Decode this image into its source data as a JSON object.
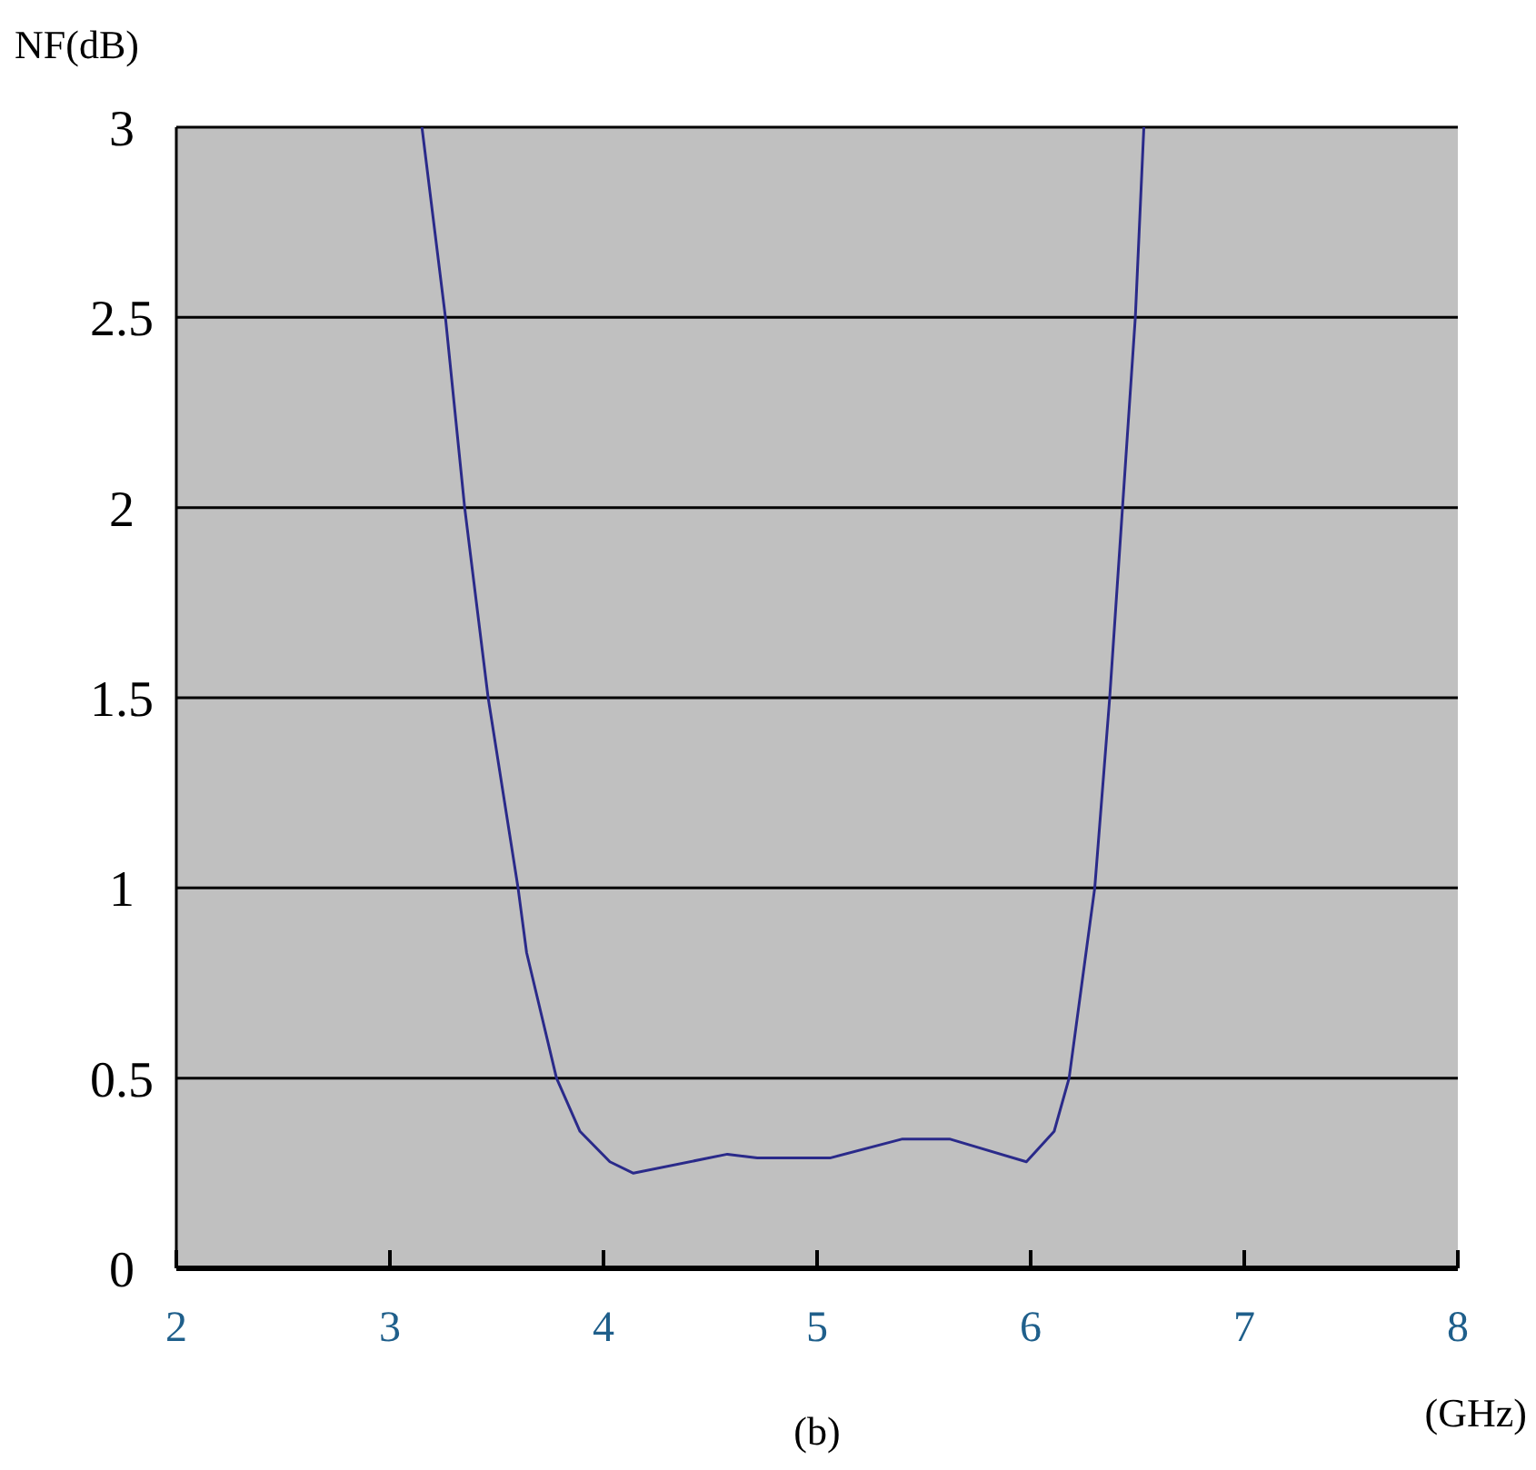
{
  "chart_data": {
    "type": "line",
    "xlabel": "(GHz)",
    "ylabel": "NF(dB)",
    "annotations": [
      "(b)"
    ],
    "xlim": [
      2,
      8
    ],
    "xticks": [
      2,
      3,
      4,
      5,
      6,
      7,
      8
    ],
    "ylim": [
      0,
      3
    ],
    "yticks": [
      0,
      0.5,
      1,
      1.5,
      2,
      2.5,
      3
    ],
    "grid": "y",
    "marker": "none",
    "line_style": "solid",
    "series": [
      {
        "color": "#2a2a8a",
        "x": [
          3.15,
          3.26,
          3.35,
          3.46,
          3.6,
          3.64,
          3.78,
          3.89,
          4.03,
          4.14,
          4.58,
          4.72,
          5.06,
          5.4,
          5.62,
          5.98,
          6.11,
          6.18,
          6.24,
          6.3,
          6.37,
          6.43,
          6.49,
          6.53
        ],
        "values": [
          3,
          2.5,
          2,
          1.5,
          1,
          0.83,
          0.5,
          0.36,
          0.28,
          0.25,
          0.3,
          0.29,
          0.29,
          0.34,
          0.34,
          0.28,
          0.36,
          0.5,
          0.75,
          1,
          1.5,
          2,
          2.5,
          3
        ]
      }
    ]
  }
}
